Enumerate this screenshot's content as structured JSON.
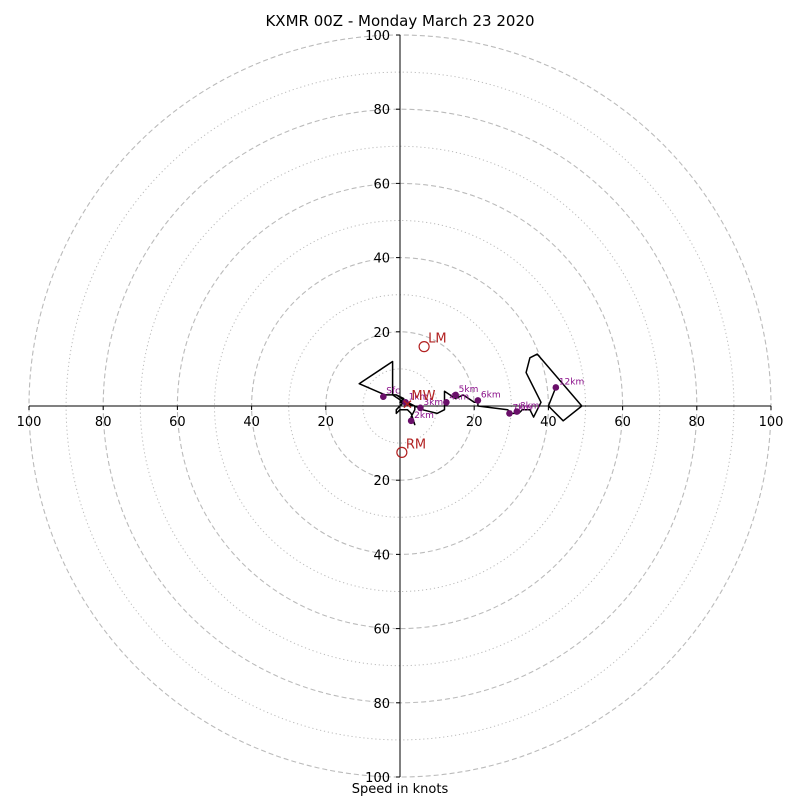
{
  "chart_data": {
    "type": "scatter",
    "subtype": "hodograph",
    "title": "KXMR 00Z - Monday March 23 2020",
    "xlabel": "Speed in knots",
    "ylabel": "",
    "xlim": [
      -100,
      100
    ],
    "ylim": [
      -100,
      100
    ],
    "ring_major": [
      20,
      40,
      60,
      80,
      100
    ],
    "ring_minor": [
      10,
      30,
      50,
      70,
      90
    ],
    "tick_values": [
      100,
      80,
      60,
      40,
      20
    ],
    "grid": true,
    "colors": {
      "trace": "#000000",
      "points": "#6a0f6a",
      "point_labels": "#8b108b",
      "motion": "#b22222",
      "grid": "#bbbbbb"
    },
    "trace": [
      [
        -1,
        3
      ],
      [
        1,
        2
      ],
      [
        0,
        1
      ],
      [
        2,
        0.5
      ],
      [
        4,
        0
      ],
      [
        4,
        -1
      ],
      [
        3,
        -3
      ],
      [
        4,
        -5
      ],
      [
        3,
        -2
      ],
      [
        2,
        -1
      ],
      [
        0,
        -1
      ],
      [
        -1,
        -2
      ],
      [
        -1,
        -1
      ],
      [
        1,
        1
      ],
      [
        -2,
        3
      ],
      [
        -2,
        12
      ],
      [
        -11,
        6
      ],
      [
        -4,
        3
      ],
      [
        -1,
        3
      ],
      [
        2,
        1
      ],
      [
        4,
        0
      ],
      [
        6,
        -1
      ],
      [
        10,
        -2
      ],
      [
        12,
        -1
      ],
      [
        12,
        4
      ],
      [
        15,
        2
      ],
      [
        17,
        3
      ],
      [
        20,
        1
      ],
      [
        21,
        1
      ],
      [
        21,
        0
      ],
      [
        29,
        -1
      ],
      [
        30,
        -2
      ],
      [
        32,
        -2
      ],
      [
        33,
        -1
      ],
      [
        35,
        -1
      ],
      [
        36,
        -3
      ],
      [
        38,
        1
      ],
      [
        34,
        9
      ],
      [
        35,
        13
      ],
      [
        37,
        14
      ],
      [
        49,
        0
      ],
      [
        44,
        -4
      ],
      [
        40,
        0
      ],
      [
        42,
        5
      ]
    ],
    "points": [
      {
        "label": "Sfc",
        "x": -4.5,
        "y": 2.5
      },
      {
        "label": "1km",
        "x": 1.5,
        "y": 1
      },
      {
        "label": "3km",
        "x": 5.5,
        "y": -0.5
      },
      {
        "label": "4km",
        "x": 12.5,
        "y": 1
      },
      {
        "label": "5km",
        "x": 15,
        "y": 3
      },
      {
        "label": "6km",
        "x": 21,
        "y": 1.5
      },
      {
        "label": "7km",
        "x": 29.5,
        "y": -2
      },
      {
        "label": "8km",
        "x": 31.5,
        "y": -1.5
      },
      {
        "label": "12km",
        "x": 42,
        "y": 5
      },
      {
        "label": "2km",
        "x": 3,
        "y": -4
      }
    ],
    "storm_motion": [
      {
        "label": "LM",
        "x": 6.5,
        "y": 16
      },
      {
        "label": "MW",
        "x": 2,
        "y": 0.5
      },
      {
        "label": "RM",
        "x": 0.5,
        "y": -12.5
      }
    ]
  }
}
